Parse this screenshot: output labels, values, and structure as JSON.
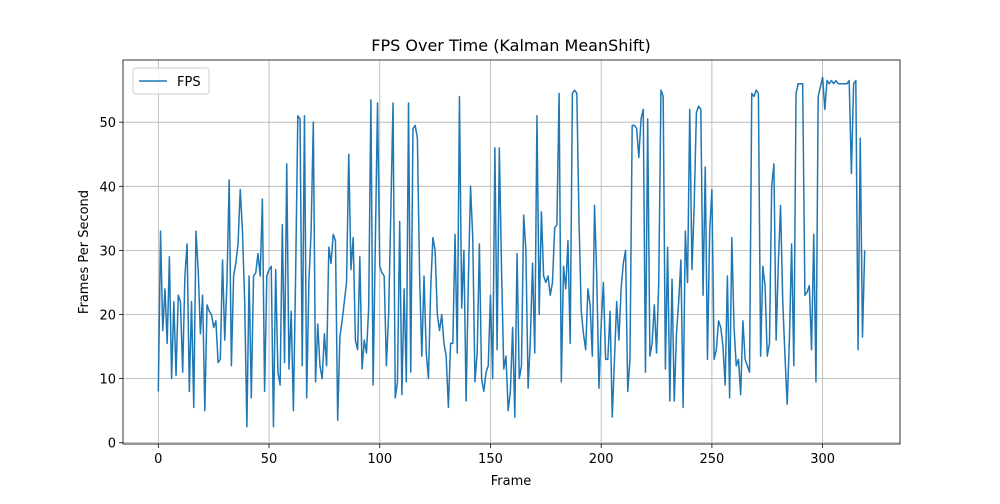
{
  "chart_data": {
    "type": "line",
    "title": "FPS Over Time (Kalman MeanShift)",
    "xlabel": "Frame",
    "ylabel": "Frames Per Second",
    "x": [
      0,
      1,
      2,
      3,
      4,
      5,
      6,
      7,
      8,
      9,
      10,
      11,
      12,
      13,
      14,
      15,
      16,
      17,
      18,
      19,
      20,
      21,
      22,
      23,
      24,
      25,
      26,
      27,
      28,
      29,
      30,
      31,
      32,
      33,
      34,
      35,
      36,
      37,
      38,
      39,
      40,
      41,
      42,
      43,
      44,
      45,
      46,
      47,
      48,
      49,
      50,
      51,
      52,
      53,
      54,
      55,
      56,
      57,
      58,
      59,
      60,
      61,
      62,
      63,
      64,
      65,
      66,
      67,
      68,
      69,
      70,
      71,
      72,
      73,
      74,
      75,
      76,
      77,
      78,
      79,
      80,
      81,
      82,
      83,
      84,
      85,
      86,
      87,
      88,
      89,
      90,
      91,
      92,
      93,
      94,
      95,
      96,
      97,
      98,
      99,
      100,
      101,
      102,
      103,
      104,
      105,
      106,
      107,
      108,
      109,
      110,
      111,
      112,
      113,
      114,
      115,
      116,
      117,
      118,
      119,
      120,
      121,
      122,
      123,
      124,
      125,
      126,
      127,
      128,
      129,
      130,
      131,
      132,
      133,
      134,
      135,
      136,
      137,
      138,
      139,
      140,
      141,
      142,
      143,
      144,
      145,
      146,
      147,
      148,
      149,
      150,
      151,
      152,
      153,
      154,
      155,
      156,
      157,
      158,
      159,
      160,
      161,
      162,
      163,
      164,
      165,
      166,
      167,
      168,
      169,
      170,
      171,
      172,
      173,
      174,
      175,
      176,
      177,
      178,
      179,
      180,
      181,
      182,
      183,
      184,
      185,
      186,
      187,
      188,
      189,
      190,
      191,
      192,
      193,
      194,
      195,
      196,
      197,
      198,
      199,
      200,
      201,
      202,
      203,
      204,
      205,
      206,
      207,
      208,
      209,
      210,
      211,
      212,
      213,
      214,
      215,
      216,
      217,
      218,
      219,
      220,
      221,
      222,
      223,
      224,
      225,
      226,
      227,
      228,
      229,
      230,
      231,
      232,
      233,
      234,
      235,
      236,
      237,
      238,
      239,
      240,
      241,
      242,
      243,
      244,
      245,
      246,
      247,
      248,
      249,
      250,
      251,
      252,
      253,
      254,
      255,
      256,
      257,
      258,
      259,
      260,
      261,
      262,
      263,
      264,
      265,
      266,
      267,
      268,
      269,
      270,
      271,
      272,
      273,
      274,
      275,
      276,
      277,
      278,
      279,
      280,
      281,
      282,
      283,
      284,
      285,
      286,
      287,
      288,
      289,
      290,
      291,
      292,
      293,
      294,
      295,
      296,
      297,
      298,
      299,
      300,
      301,
      302,
      303,
      304,
      305,
      306,
      307,
      308,
      309,
      310,
      311,
      312,
      313,
      314,
      315,
      316,
      317,
      318,
      319
    ],
    "series": [
      {
        "name": "FPS",
        "color": "#1f77b4",
        "values": [
          8,
          33,
          17.5,
          24,
          15.5,
          29,
          10,
          22,
          10.5,
          23,
          22,
          11,
          26,
          31,
          8,
          22,
          5.5,
          33,
          27,
          17,
          23,
          5,
          21.5,
          20.5,
          20,
          18,
          19,
          12.5,
          13,
          28.5,
          16,
          25,
          41,
          12,
          26,
          28,
          31,
          39.5,
          33,
          22,
          2.5,
          26,
          7,
          26,
          26.5,
          29.5,
          26,
          38,
          8,
          26,
          27,
          27.5,
          2.5,
          27,
          11,
          9,
          34,
          12.5,
          43.5,
          11.5,
          20.5,
          5,
          26,
          51,
          50.5,
          12,
          51,
          7,
          25,
          33,
          50,
          9.5,
          18.5,
          12,
          10,
          17,
          12,
          30.5,
          28,
          32.5,
          31.5,
          3.5,
          16.5,
          19,
          22,
          25,
          45,
          27,
          32,
          16,
          14.5,
          29,
          11.5,
          16,
          14,
          21,
          53.5,
          9,
          31,
          53,
          27.5,
          26.5,
          26,
          12,
          20,
          36,
          53,
          7,
          9.5,
          34.5,
          7.5,
          24,
          9.5,
          53,
          11,
          49,
          49.5,
          47.5,
          26,
          13.5,
          26,
          14,
          10,
          24,
          32,
          30,
          20,
          17.5,
          20,
          15.5,
          13.5,
          5.5,
          15.5,
          15.5,
          32.5,
          14,
          54,
          21,
          30,
          6.5,
          25,
          40,
          32,
          9.5,
          14,
          31,
          10,
          8,
          11,
          12,
          23,
          10,
          46,
          14.5,
          46,
          27,
          11.5,
          13.5,
          5,
          8,
          18,
          4,
          29.5,
          10,
          12,
          35.5,
          30,
          8.5,
          16,
          28,
          14,
          51,
          20,
          36,
          26,
          25,
          26,
          23,
          25,
          33.5,
          34,
          54.5,
          9.5,
          27.5,
          24,
          31.5,
          15.5,
          54.5,
          55,
          54.5,
          34.5,
          20.5,
          17,
          14.5,
          24,
          21.5,
          13.5,
          37,
          26,
          8.5,
          18.5,
          25,
          13,
          13,
          20.5,
          4,
          13,
          22,
          16,
          24,
          28,
          30,
          8,
          13,
          49.5,
          49.5,
          49,
          44.5,
          50.5,
          52,
          11,
          50.5,
          13.5,
          15.5,
          21.5,
          14,
          25,
          55,
          54,
          11.5,
          30.5,
          6.5,
          25.5,
          6.5,
          17,
          22,
          28.5,
          5.5,
          33,
          25,
          52,
          27,
          37,
          51.5,
          52.5,
          52,
          23,
          43,
          13,
          33,
          39.5,
          13,
          14.5,
          19,
          18,
          15,
          9,
          26,
          7,
          32,
          18,
          12,
          13,
          7.5,
          19,
          13,
          12,
          11,
          54.5,
          54,
          55,
          54.5,
          13.5,
          27.5,
          24.5,
          13.5,
          15.5,
          40,
          43.5,
          16,
          28,
          37,
          22,
          13.5,
          6,
          16,
          31,
          12,
          54.5,
          56,
          56,
          56,
          23,
          23.5,
          24.5,
          14.5,
          32.5,
          9.5,
          54,
          55.5,
          57,
          52,
          56.5,
          56,
          56.5,
          56,
          56.5,
          56,
          56,
          56,
          56,
          56,
          56.5,
          42,
          56,
          56.5,
          14.5,
          47.5,
          16.5,
          30
        ]
      }
    ],
    "xlim": [
      -15.95,
      334.95
    ],
    "ylim": [
      -0.2,
      59.7
    ],
    "xticks": [
      0,
      50,
      100,
      150,
      200,
      250,
      300
    ],
    "yticks": [
      0,
      10,
      20,
      30,
      40,
      50
    ],
    "grid": true,
    "legend": "upper left"
  }
}
